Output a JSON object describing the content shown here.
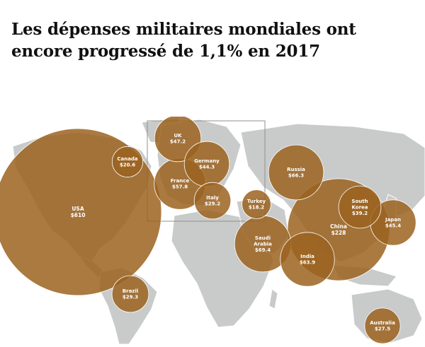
{
  "title": {
    "line1": "Les dépenses militaires mondiales ont",
    "line2": "encore progressé de 1,1% en 2017"
  },
  "colors": {
    "bubble": "#9b6320",
    "bubble_overlap": "#6e3418",
    "land": "#c9cbca",
    "sea": "#ffffff",
    "label": "#ffffff"
  },
  "chart_data": {
    "type": "bubble-map",
    "unit": "$",
    "countries": [
      {
        "name": "USA",
        "value_label": "$610",
        "value": 610
      },
      {
        "name": "Canada",
        "value_label": "$20.6",
        "value": 20.6
      },
      {
        "name": "Brazil",
        "value_label": "$29.3",
        "value": 29.3
      },
      {
        "name": "UK",
        "value_label": "$47.2",
        "value": 47.2
      },
      {
        "name": "Germany",
        "value_label": "$44.3",
        "value": 44.3
      },
      {
        "name": "France",
        "value_label": "$57.8",
        "value": 57.8
      },
      {
        "name": "Italy",
        "value_label": "$29.2",
        "value": 29.2
      },
      {
        "name": "Turkey",
        "value_label": "$18.2",
        "value": 18.2
      },
      {
        "name": "Russia",
        "value_label": "$66.3",
        "value": 66.3
      },
      {
        "name": "Saudi Arabia",
        "value_label": "$69.4",
        "value": 69.4
      },
      {
        "name": "India",
        "value_label": "$63.9",
        "value": 63.9
      },
      {
        "name": "China",
        "value_label": "$228",
        "value": 228
      },
      {
        "name": "South Korea",
        "value_label": "$39.2",
        "value": 39.2
      },
      {
        "name": "Japan",
        "value_label": "$45.4",
        "value": 45.4
      },
      {
        "name": "Australia",
        "value_label": "$27.5",
        "value": 27.5
      }
    ]
  }
}
